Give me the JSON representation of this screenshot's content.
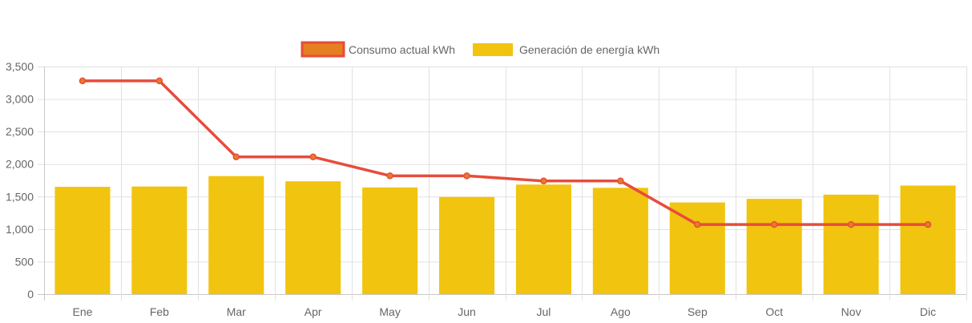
{
  "chart_data": {
    "type": "bar",
    "categories": [
      "Ene",
      "Feb",
      "Mar",
      "Apr",
      "May",
      "Jun",
      "Jul",
      "Ago",
      "Sep",
      "Oct",
      "Nov",
      "Dic"
    ],
    "series": [
      {
        "name": "Consumo actual kWh",
        "type": "line",
        "values": [
          3280,
          3280,
          2110,
          2110,
          1820,
          1820,
          1740,
          1740,
          1070,
          1070,
          1070,
          1070
        ],
        "color": "#e74c3c",
        "point_color": "#e67e22"
      },
      {
        "name": "Generación de energía kWh",
        "type": "bar",
        "values": [
          1650,
          1655,
          1815,
          1735,
          1640,
          1495,
          1685,
          1635,
          1410,
          1465,
          1530,
          1670
        ],
        "color": "#f1c40f"
      }
    ],
    "yticks": [
      "0",
      "500",
      "1,000",
      "1,500",
      "2,000",
      "2,500",
      "3,000",
      "3,500"
    ],
    "ylim": [
      0,
      3500
    ],
    "legend_position": "top",
    "grid": true
  }
}
